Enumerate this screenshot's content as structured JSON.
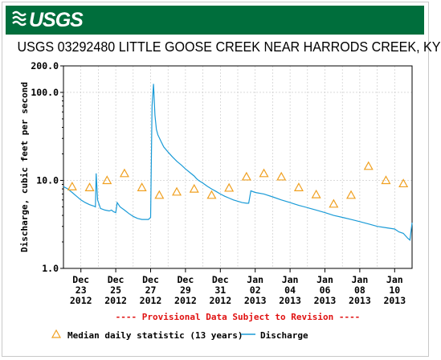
{
  "header": {
    "logo_text": "USGS",
    "title": "USGS 03292480 LITTLE GOOSE CREEK NEAR HARRODS CREEK, KY"
  },
  "colors": {
    "banner": "#006e3c",
    "discharge": "#1a9bd7",
    "median": "#f0a020",
    "provisional": "#e01010"
  },
  "chart_data": {
    "type": "line",
    "title": "USGS 03292480 LITTLE GOOSE CREEK NEAR HARRODS CREEK, KY",
    "ylabel": "Discharge, cubic feet per second",
    "yscale": "log",
    "ylim": [
      1.0,
      200.0
    ],
    "yticks": [
      "1.0",
      "10.0",
      "100.0",
      "200.0"
    ],
    "yticks_values": [
      1.0,
      10.0,
      100.0,
      200.0
    ],
    "xlim": [
      "2012-12-22",
      "2013-01-11"
    ],
    "xticks": [
      {
        "day": "Dec",
        "date": "23",
        "year": "2012"
      },
      {
        "day": "Dec",
        "date": "25",
        "year": "2012"
      },
      {
        "day": "Dec",
        "date": "27",
        "year": "2012"
      },
      {
        "day": "Dec",
        "date": "29",
        "year": "2012"
      },
      {
        "day": "Dec",
        "date": "31",
        "year": "2012"
      },
      {
        "day": "Jan",
        "date": "02",
        "year": "2013"
      },
      {
        "day": "Jan",
        "date": "04",
        "year": "2013"
      },
      {
        "day": "Jan",
        "date": "06",
        "year": "2013"
      },
      {
        "day": "Jan",
        "date": "08",
        "year": "2013"
      },
      {
        "day": "Jan",
        "date": "10",
        "year": "2013"
      }
    ],
    "xtick_dates": [
      "2012-12-23",
      "2012-12-25",
      "2012-12-27",
      "2012-12-29",
      "2012-12-31",
      "2013-01-02",
      "2013-01-04",
      "2013-01-06",
      "2013-01-08",
      "2013-01-10"
    ],
    "grid": true,
    "annotation": "---- Provisional Data Subject to Revision ----",
    "series": [
      {
        "name": "Discharge",
        "style": "line",
        "x": [
          "2012-12-22T00:00",
          "2012-12-22T06:00",
          "2012-12-22T12:00",
          "2012-12-22T18:00",
          "2012-12-23T00:00",
          "2012-12-23T06:00",
          "2012-12-23T12:00",
          "2012-12-23T18:00",
          "2012-12-23T20:00",
          "2012-12-23T21:00",
          "2012-12-23T23:00",
          "2012-12-24T03:00",
          "2012-12-24T09:00",
          "2012-12-24T15:00",
          "2012-12-24T18:00",
          "2012-12-24T21:00",
          "2012-12-25T00:00",
          "2012-12-25T02:00",
          "2012-12-25T06:00",
          "2012-12-25T12:00",
          "2012-12-25T18:00",
          "2012-12-26T00:00",
          "2012-12-26T06:00",
          "2012-12-26T12:00",
          "2012-12-26T18:00",
          "2012-12-26T21:00",
          "2012-12-27T00:00",
          "2012-12-27T02:00",
          "2012-12-27T04:00",
          "2012-12-27T06:00",
          "2012-12-27T08:00",
          "2012-12-27T10:00",
          "2012-12-27T14:00",
          "2012-12-27T18:00",
          "2012-12-28T00:00",
          "2012-12-28T06:00",
          "2012-12-28T12:00",
          "2012-12-28T18:00",
          "2012-12-29T00:00",
          "2012-12-29T06:00",
          "2012-12-29T12:00",
          "2012-12-29T15:00",
          "2012-12-29T18:00",
          "2012-12-30T00:00",
          "2012-12-30T06:00",
          "2012-12-30T12:00",
          "2012-12-30T18:00",
          "2012-12-31T00:00",
          "2012-12-31T06:00",
          "2012-12-31T12:00",
          "2012-12-31T18:00",
          "2013-01-01T00:00",
          "2013-01-01T06:00",
          "2013-01-01T12:00",
          "2013-01-01T15:00",
          "2013-01-01T18:00",
          "2013-01-02T00:00",
          "2013-01-02T12:00",
          "2013-01-03T00:00",
          "2013-01-03T12:00",
          "2013-01-04T00:00",
          "2013-01-04T12:00",
          "2013-01-05T00:00",
          "2013-01-05T12:00",
          "2013-01-06T00:00",
          "2013-01-06T12:00",
          "2013-01-07T00:00",
          "2013-01-07T12:00",
          "2013-01-08T00:00",
          "2013-01-08T12:00",
          "2013-01-09T00:00",
          "2013-01-09T12:00",
          "2013-01-10T00:00",
          "2013-01-10T06:00",
          "2013-01-10T12:00",
          "2013-01-10T18:00",
          "2013-01-10T21:00",
          "2013-01-11T00:00"
        ],
        "y": [
          8.5,
          8.0,
          7.3,
          6.6,
          6.0,
          5.6,
          5.3,
          5.1,
          5.0,
          12.0,
          6.0,
          4.8,
          4.6,
          4.5,
          4.6,
          4.4,
          4.3,
          5.6,
          5.0,
          4.6,
          4.2,
          3.9,
          3.7,
          3.6,
          3.6,
          3.6,
          3.8,
          70.0,
          125.0,
          55.0,
          38.0,
          33.0,
          28.0,
          24.0,
          21.0,
          18.5,
          16.5,
          15.0,
          13.5,
          12.3,
          11.2,
          10.5,
          10.0,
          9.3,
          8.6,
          8.0,
          7.5,
          7.0,
          6.6,
          6.3,
          6.0,
          5.8,
          5.6,
          5.5,
          5.5,
          7.6,
          7.3,
          7.0,
          6.5,
          6.0,
          5.6,
          5.2,
          4.9,
          4.6,
          4.3,
          4.0,
          3.8,
          3.6,
          3.4,
          3.2,
          3.0,
          2.9,
          2.8,
          2.6,
          2.5,
          2.2,
          2.1,
          3.3
        ]
      },
      {
        "name": "Median daily statistic (13 years)",
        "style": "triangle",
        "x": [
          "2012-12-22T12:00",
          "2012-12-23T12:00",
          "2012-12-24T12:00",
          "2012-12-25T12:00",
          "2012-12-26T12:00",
          "2012-12-27T12:00",
          "2012-12-28T12:00",
          "2012-12-29T12:00",
          "2012-12-30T12:00",
          "2012-12-31T12:00",
          "2013-01-01T12:00",
          "2013-01-02T12:00",
          "2013-01-03T12:00",
          "2013-01-04T12:00",
          "2013-01-05T12:00",
          "2013-01-06T12:00",
          "2013-01-07T12:00",
          "2013-01-08T12:00",
          "2013-01-09T12:00",
          "2013-01-10T12:00"
        ],
        "y": [
          8.5,
          8.3,
          10.0,
          12.0,
          8.3,
          6.8,
          7.4,
          8.0,
          6.8,
          8.2,
          11.0,
          12.0,
          11.0,
          8.3,
          6.9,
          5.4,
          6.8,
          14.5,
          10.0,
          9.2
        ]
      }
    ],
    "legend": {
      "placement": "bottom",
      "items": [
        {
          "symbol": "triangle",
          "label": "Median daily statistic (13 years)"
        },
        {
          "symbol": "line",
          "label": "Discharge"
        }
      ]
    }
  }
}
